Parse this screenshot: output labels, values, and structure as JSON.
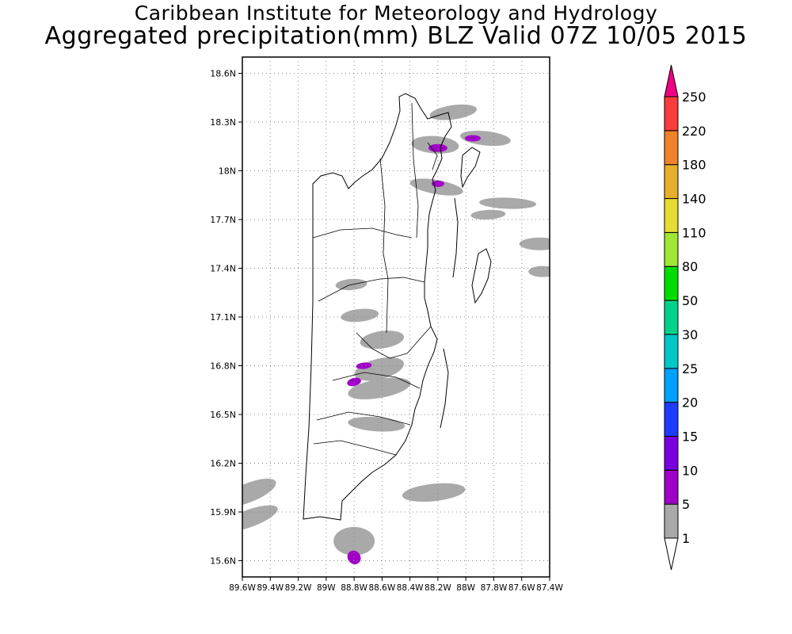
{
  "title": "Caribbean Institute for Meteorology and Hydrology",
  "subtitle": "Aggregated precipitation(mm) BLZ Valid 07Z 10/05 2015",
  "map": {
    "lat_ticks": [
      "15.6N",
      "15.9N",
      "16.2N",
      "16.5N",
      "16.8N",
      "17.1N",
      "17.4N",
      "17.7N",
      "18N",
      "18.3N",
      "18.6N"
    ],
    "lon_ticks": [
      "89.6W",
      "89.4W",
      "89.2W",
      "89W",
      "88.8W",
      "88.6W",
      "88.4W",
      "88.2W",
      "88W",
      "87.8W",
      "87.6W",
      "87.4W"
    ],
    "lon_range": [
      -89.6,
      -87.4
    ],
    "lat_range": [
      15.5,
      18.7
    ],
    "grid": true,
    "country": "Belize"
  },
  "colorbar": {
    "labels": [
      "1",
      "5",
      "10",
      "15",
      "20",
      "25",
      "30",
      "50",
      "80",
      "110",
      "140",
      "180",
      "220",
      "250"
    ],
    "colors": [
      "#ffffff",
      "#a9a9a9",
      "#a100c8",
      "#7800dc",
      "#1e3cff",
      "#00a0ff",
      "#00c8c8",
      "#00d28c",
      "#00dc00",
      "#a0e632",
      "#e6dc32",
      "#e6af2d",
      "#f08228",
      "#fa3c3c",
      "#f00082"
    ]
  },
  "precip_areas": [
    {
      "level": "1-5",
      "lon": -88.09,
      "lat": 18.36
    },
    {
      "level": "1-5",
      "lon": -87.86,
      "lat": 18.2
    },
    {
      "level": "1-5",
      "lon": -88.22,
      "lat": 18.16
    },
    {
      "level": "1-5",
      "lon": -88.21,
      "lat": 17.9
    },
    {
      "level": "1-5",
      "lon": -87.7,
      "lat": 17.8
    },
    {
      "level": "1-5",
      "lon": -87.84,
      "lat": 17.73
    },
    {
      "level": "1-5",
      "lon": -87.47,
      "lat": 17.55
    },
    {
      "level": "1-5",
      "lon": -87.45,
      "lat": 17.38
    },
    {
      "level": "1-5",
      "lon": -88.82,
      "lat": 17.3
    },
    {
      "level": "1-5",
      "lon": -88.76,
      "lat": 17.11
    },
    {
      "level": "1-5",
      "lon": -88.6,
      "lat": 16.96
    },
    {
      "level": "1-5",
      "lon": -88.62,
      "lat": 16.78
    },
    {
      "level": "1-5",
      "lon": -88.62,
      "lat": 16.66
    },
    {
      "level": "1-5",
      "lon": -88.64,
      "lat": 16.44
    },
    {
      "level": "1-5",
      "lon": -88.23,
      "lat": 16.02
    },
    {
      "level": "1-5",
      "lon": -89.55,
      "lat": 16.02
    },
    {
      "level": "1-5",
      "lon": -89.55,
      "lat": 15.86
    },
    {
      "level": "1-5",
      "lon": -88.8,
      "lat": 15.72
    },
    {
      "level": "5-10",
      "lon": -88.2,
      "lat": 18.14
    },
    {
      "level": "5-10",
      "lon": -87.95,
      "lat": 18.2
    },
    {
      "level": "5-10",
      "lon": -88.2,
      "lat": 17.92
    },
    {
      "level": "5-10",
      "lon": -88.73,
      "lat": 16.8
    },
    {
      "level": "5-10",
      "lon": -88.8,
      "lat": 16.7
    },
    {
      "level": "5-10",
      "lon": -88.8,
      "lat": 15.62
    }
  ]
}
